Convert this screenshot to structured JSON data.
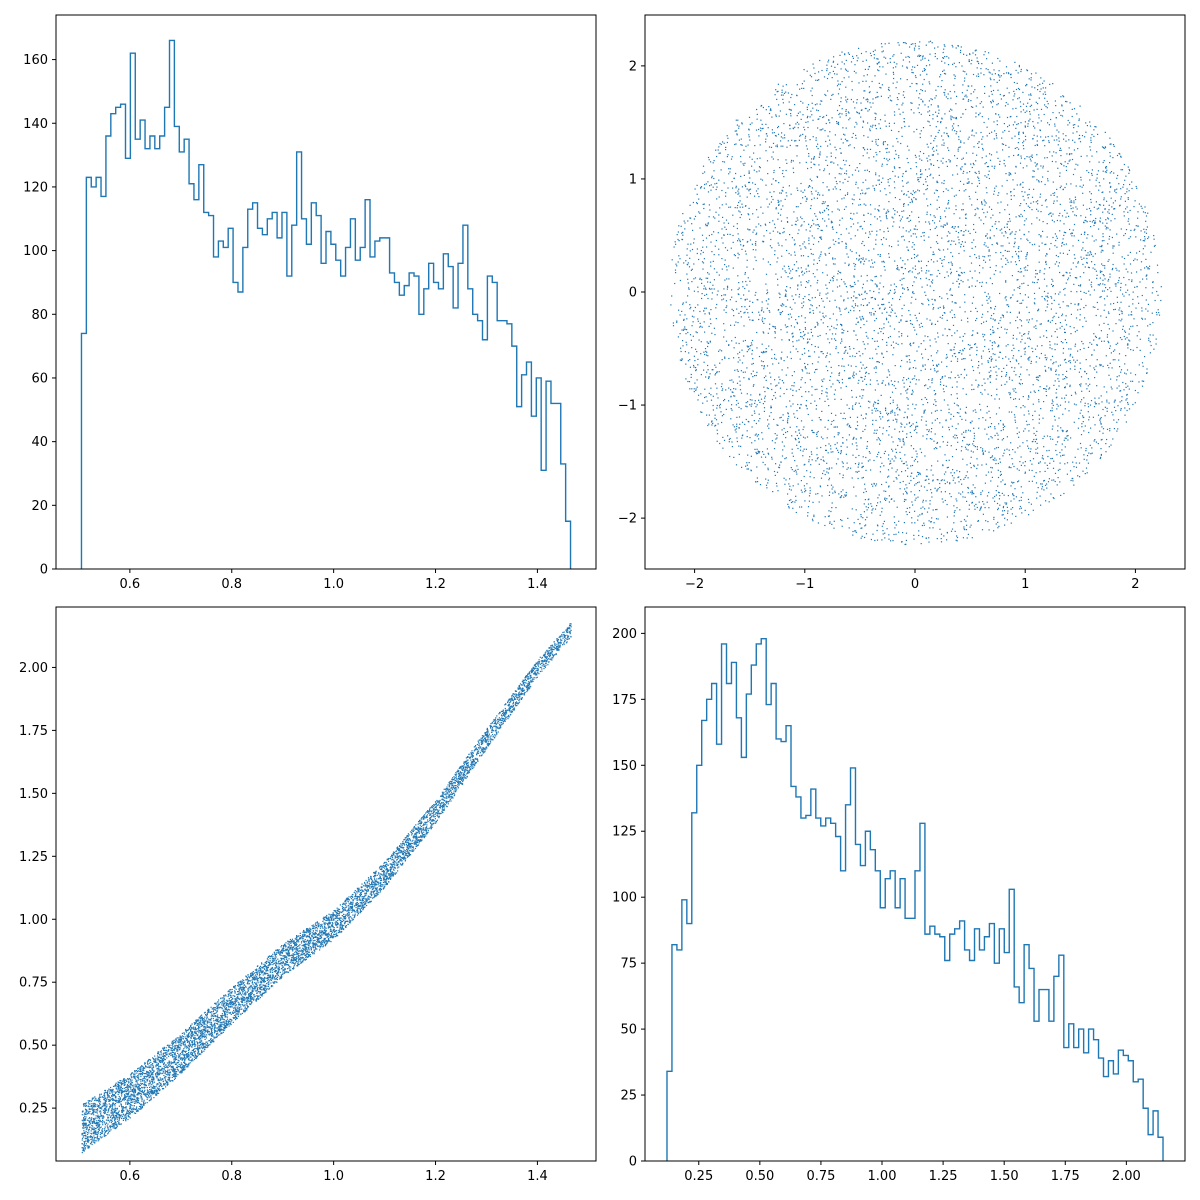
{
  "figure": {
    "background": "#ffffff",
    "accent": "#1f77b4"
  },
  "chart_data": [
    {
      "id": "hist-top-left",
      "type": "bar",
      "style": "step-histogram",
      "color": "#1f77b4",
      "xlim": [
        0.455,
        1.515
      ],
      "ylim": [
        0,
        174
      ],
      "xticks": [
        0.6,
        0.8,
        1.0,
        1.2,
        1.4
      ],
      "xtick_labels": [
        "0.6",
        "0.8",
        "1.0",
        "1.2",
        "1.4"
      ],
      "yticks": [
        0,
        20,
        40,
        60,
        80,
        100,
        120,
        140,
        160
      ],
      "ytick_labels": [
        "0",
        "20",
        "40",
        "60",
        "80",
        "100",
        "120",
        "140",
        "160"
      ],
      "bin_range": [
        0.505,
        1.465
      ],
      "values": [
        74,
        123,
        120,
        123,
        117,
        136,
        143,
        145,
        146,
        129,
        162,
        135,
        141,
        132,
        136,
        132,
        136,
        145,
        166,
        139,
        131,
        135,
        121,
        116,
        127,
        112,
        111,
        98,
        103,
        101,
        107,
        90,
        87,
        101,
        113,
        115,
        107,
        105,
        110,
        112,
        104,
        112,
        92,
        108,
        131,
        110,
        102,
        115,
        111,
        96,
        106,
        102,
        97,
        92,
        101,
        110,
        97,
        101,
        116,
        98,
        103,
        104,
        104,
        93,
        90,
        86,
        89,
        93,
        92,
        80,
        88,
        96,
        90,
        88,
        99,
        95,
        82,
        96,
        108,
        88,
        80,
        78,
        72,
        92,
        90,
        78,
        78,
        77,
        70,
        51,
        61,
        65,
        48,
        60,
        31,
        59,
        52,
        52,
        33,
        15
      ]
    },
    {
      "id": "scatter-top-right",
      "type": "scatter",
      "color": "#1f77b4",
      "xlim": [
        -2.45,
        2.45
      ],
      "ylim": [
        -2.45,
        2.45
      ],
      "xticks": [
        -2,
        -1,
        0,
        1,
        2
      ],
      "xtick_labels": [
        "−2",
        "−1",
        "0",
        "1",
        "2"
      ],
      "yticks": [
        -2,
        -1,
        0,
        1,
        2
      ],
      "ytick_labels": [
        "−2",
        "−1",
        "0",
        "1",
        "2"
      ],
      "shape": "uniform disc",
      "center": [
        0,
        0
      ],
      "radius": 2.23,
      "point_count": 7000
    },
    {
      "id": "scatter-bottom-left",
      "type": "scatter",
      "color": "#1f77b4",
      "xlim": [
        0.455,
        1.515
      ],
      "ylim": [
        0.04,
        2.24
      ],
      "xticks": [
        0.6,
        0.8,
        1.0,
        1.2,
        1.4
      ],
      "xtick_labels": [
        "0.6",
        "0.8",
        "1.0",
        "1.2",
        "1.4"
      ],
      "yticks": [
        0.25,
        0.5,
        0.75,
        1.0,
        1.25,
        1.5,
        1.75,
        2.0
      ],
      "ytick_labels": [
        "0.25",
        "0.50",
        "0.75",
        "1.00",
        "1.25",
        "1.50",
        "1.75",
        "2.00"
      ],
      "shape": "narrow curved band",
      "band_x_range": [
        0.505,
        1.465
      ],
      "band_center": [
        [
          0.505,
          0.17
        ],
        [
          0.6,
          0.3
        ],
        [
          0.7,
          0.47
        ],
        [
          0.8,
          0.66
        ],
        [
          0.9,
          0.84
        ],
        [
          1.0,
          0.98
        ],
        [
          1.1,
          1.18
        ],
        [
          1.2,
          1.43
        ],
        [
          1.3,
          1.72
        ],
        [
          1.4,
          2.0
        ],
        [
          1.465,
          2.15
        ]
      ],
      "band_width": 0.06,
      "point_count": 7000
    },
    {
      "id": "hist-bottom-right",
      "type": "bar",
      "style": "step-histogram",
      "color": "#1f77b4",
      "xlim": [
        0.03,
        2.24
      ],
      "ylim": [
        0,
        210
      ],
      "xticks": [
        0.25,
        0.5,
        0.75,
        1.0,
        1.25,
        1.5,
        1.75,
        2.0
      ],
      "xtick_labels": [
        "0.25",
        "0.50",
        "0.75",
        "1.00",
        "1.25",
        "1.50",
        "1.75",
        "2.00"
      ],
      "yticks": [
        0,
        25,
        50,
        75,
        100,
        125,
        150,
        175,
        200
      ],
      "ytick_labels": [
        "0",
        "25",
        "50",
        "75",
        "100",
        "125",
        "150",
        "175",
        "200"
      ],
      "bin_range": [
        0.12,
        2.15
      ],
      "values": [
        34,
        82,
        80,
        99,
        90,
        132,
        150,
        167,
        175,
        181,
        158,
        196,
        181,
        189,
        168,
        153,
        177,
        188,
        196,
        198,
        173,
        181,
        160,
        159,
        165,
        142,
        138,
        130,
        131,
        141,
        130,
        127,
        130,
        128,
        123,
        110,
        135,
        149,
        120,
        112,
        125,
        118,
        110,
        96,
        107,
        110,
        96,
        107,
        92,
        92,
        110,
        128,
        86,
        89,
        86,
        85,
        76,
        86,
        88,
        91,
        80,
        76,
        88,
        80,
        85,
        90,
        75,
        88,
        79,
        103,
        66,
        60,
        82,
        73,
        53,
        65,
        65,
        53,
        70,
        78,
        43,
        52,
        43,
        50,
        41,
        50,
        46,
        39,
        32,
        38,
        33,
        42,
        40,
        38,
        30,
        31,
        20,
        10,
        19,
        9
      ]
    }
  ]
}
